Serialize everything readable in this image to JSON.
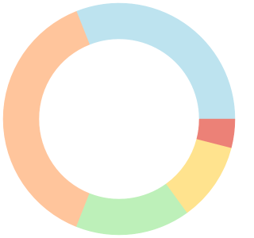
{
  "chart_data": {
    "type": "donut",
    "values": [
      31,
      38,
      16,
      11,
      4
    ],
    "colors": [
      "#bde3ef",
      "#ffc59c",
      "#bdf0b9",
      "#ffe38e",
      "#ec8177"
    ]
  }
}
